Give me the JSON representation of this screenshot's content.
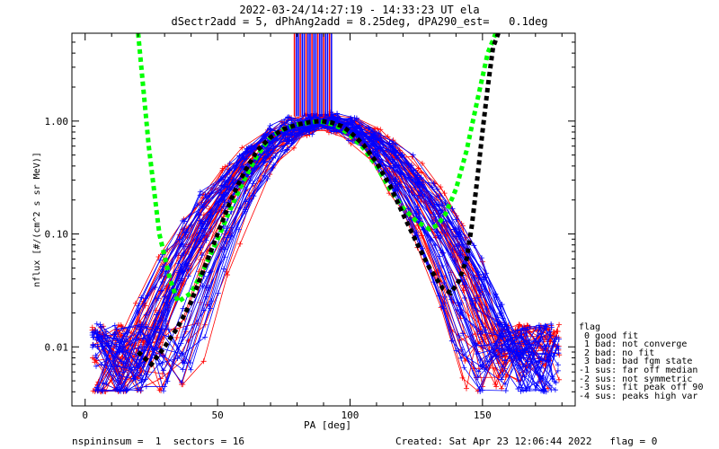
{
  "title_line1": "2022-03-24/14:27:19 - 14:33:23 UT ela",
  "title_line2": "dSectr2add = 5, dPhAng2add = 8.25deg, dPA290_est=   0.1deg",
  "footer": {
    "left": "nspininsum =  1  sectors = 16",
    "right": "Created: Sat Apr 23 12:06:44 2022   flag = 0"
  },
  "legend": {
    "title": "flag",
    "entries": [
      " 0 good fit",
      " 1 bad: not converge",
      " 2 bad: no fit",
      " 3 bad: bad fgm state",
      "-1 sus: far off median",
      "-2 sus: not symmetric",
      "-3 sus: fit peak off 90",
      "-4 sus: peaks high var"
    ]
  },
  "colors": {
    "blue_series": "#0000ff",
    "red_series": "#ff0000",
    "green_fit": "#00ff00",
    "black_fit": "#000000"
  },
  "chart_data": {
    "type": "line",
    "xlabel": "PA [deg]",
    "ylabel": "nflux [#/(cm^2 s sr MeV)]",
    "xlim": [
      -5,
      185
    ],
    "ylim": [
      0.003,
      6.0
    ],
    "yscale": "log",
    "xticks": [
      0,
      50,
      100,
      150
    ],
    "xtick_labels": [
      "0",
      "50",
      "100",
      "150"
    ],
    "yticks": [
      0.01,
      0.1,
      1.0
    ],
    "ytick_labels": [
      "0.01",
      "0.10",
      "1.00"
    ],
    "green_fit": {
      "x": [
        20,
        24,
        28,
        32,
        35,
        40,
        45,
        50,
        55,
        60,
        65,
        70,
        75,
        80,
        85,
        88,
        92,
        96,
        100,
        105,
        110,
        115,
        120,
        125,
        130,
        133,
        136,
        140,
        144,
        148,
        152,
        155
      ],
      "y": [
        6.0,
        0.6,
        0.1,
        0.04,
        0.025,
        0.03,
        0.05,
        0.09,
        0.17,
        0.3,
        0.5,
        0.72,
        0.85,
        0.93,
        0.97,
        1.0,
        0.96,
        0.88,
        0.75,
        0.58,
        0.4,
        0.25,
        0.17,
        0.13,
        0.11,
        0.12,
        0.15,
        0.25,
        0.55,
        1.5,
        4.0,
        6.0
      ]
    },
    "black_fit": {
      "x": [
        20,
        25,
        30,
        35,
        40,
        45,
        50,
        55,
        60,
        65,
        70,
        75,
        80,
        85,
        89,
        93,
        97,
        100,
        105,
        110,
        115,
        120,
        125,
        130,
        135,
        138,
        141,
        144,
        146,
        148,
        150,
        152,
        154,
        156
      ],
      "y": [
        0.009,
        0.007,
        0.01,
        0.015,
        0.025,
        0.05,
        0.1,
        0.2,
        0.35,
        0.55,
        0.72,
        0.85,
        0.93,
        0.98,
        1.0,
        0.97,
        0.9,
        0.8,
        0.62,
        0.43,
        0.27,
        0.15,
        0.085,
        0.05,
        0.033,
        0.03,
        0.038,
        0.06,
        0.12,
        0.3,
        0.8,
        2.0,
        4.5,
        6.0
      ]
    },
    "vertical_markers": {
      "x_range": [
        79,
        93
      ],
      "y_range": [
        1.1,
        6.0
      ],
      "count": 20
    }
  }
}
